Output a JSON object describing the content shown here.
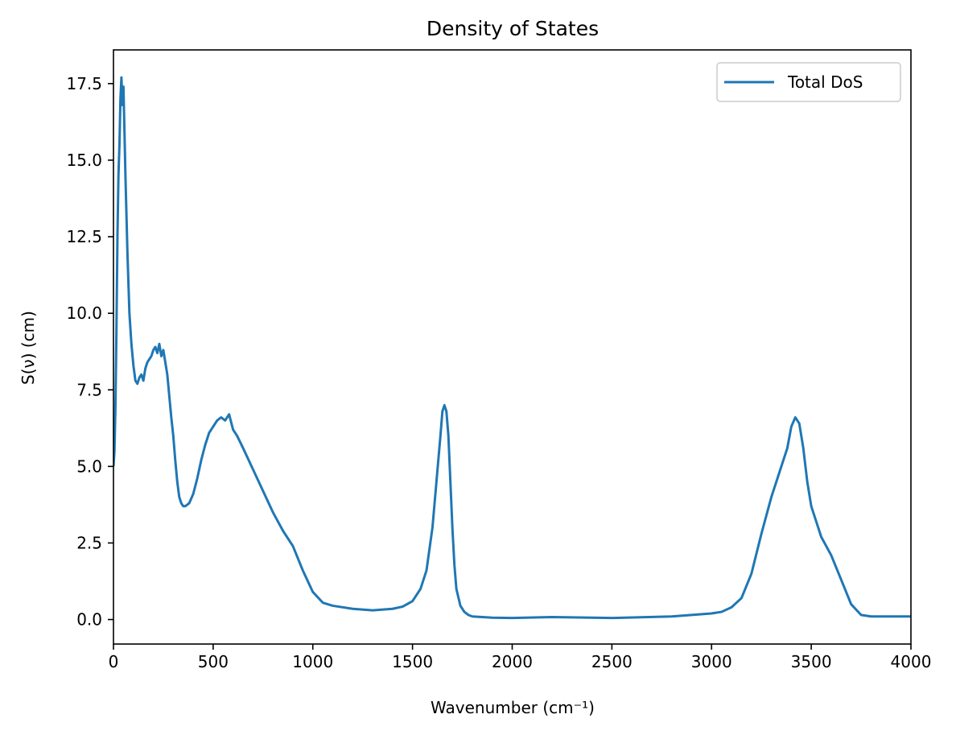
{
  "chart_data": {
    "type": "line",
    "title": "Density of States",
    "xlabel": "Wavenumber (cm⁻¹)",
    "ylabel": "S(ν) (cm)",
    "xlim": [
      0,
      4000
    ],
    "ylim": [
      -0.8,
      18.6
    ],
    "xticks": [
      0,
      500,
      1000,
      1500,
      2000,
      2500,
      3000,
      3500,
      4000
    ],
    "xtick_labels": [
      "0",
      "500",
      "1000",
      "1500",
      "2000",
      "2500",
      "3000",
      "3500",
      "4000"
    ],
    "yticks": [
      0,
      2.5,
      5,
      7.5,
      10,
      12.5,
      15,
      17.5
    ],
    "ytick_labels": [
      "0.0",
      "2.5",
      "5.0",
      "7.5",
      "10.0",
      "12.5",
      "15.0",
      "17.5"
    ],
    "grid": false,
    "legend_position": "top-right",
    "colors": {
      "series": "#1f77b4",
      "axes": "#000000"
    },
    "series": [
      {
        "name": "Total DoS",
        "x": [
          0,
          5,
          10,
          15,
          20,
          25,
          30,
          35,
          40,
          45,
          50,
          55,
          60,
          70,
          80,
          90,
          100,
          110,
          120,
          130,
          140,
          150,
          160,
          170,
          180,
          190,
          200,
          210,
          220,
          230,
          240,
          250,
          260,
          270,
          280,
          290,
          300,
          310,
          320,
          330,
          340,
          350,
          360,
          370,
          380,
          400,
          420,
          440,
          460,
          480,
          500,
          520,
          540,
          560,
          580,
          600,
          620,
          650,
          700,
          750,
          800,
          850,
          900,
          950,
          1000,
          1050,
          1100,
          1200,
          1300,
          1400,
          1450,
          1500,
          1540,
          1570,
          1600,
          1620,
          1640,
          1650,
          1660,
          1670,
          1680,
          1690,
          1700,
          1710,
          1720,
          1740,
          1760,
          1780,
          1800,
          1850,
          1900,
          2000,
          2200,
          2500,
          2800,
          3000,
          3050,
          3100,
          3150,
          3200,
          3250,
          3300,
          3350,
          3380,
          3400,
          3420,
          3440,
          3460,
          3480,
          3500,
          3550,
          3600,
          3650,
          3700,
          3750,
          3800,
          3900,
          4000
        ],
        "y": [
          5.0,
          5.5,
          7.0,
          9.5,
          12.5,
          14.5,
          15.5,
          17.0,
          17.7,
          16.8,
          17.4,
          16.0,
          14.5,
          12.0,
          10.0,
          9.0,
          8.3,
          7.8,
          7.7,
          7.9,
          8.0,
          7.8,
          8.2,
          8.4,
          8.5,
          8.6,
          8.8,
          8.9,
          8.7,
          9.0,
          8.6,
          8.8,
          8.4,
          8.0,
          7.3,
          6.6,
          6.0,
          5.2,
          4.5,
          4.0,
          3.8,
          3.7,
          3.7,
          3.75,
          3.8,
          4.1,
          4.6,
          5.2,
          5.7,
          6.1,
          6.3,
          6.5,
          6.6,
          6.5,
          6.7,
          6.2,
          6.0,
          5.6,
          4.9,
          4.2,
          3.5,
          2.9,
          2.4,
          1.6,
          0.9,
          0.55,
          0.45,
          0.35,
          0.3,
          0.35,
          0.42,
          0.6,
          1.0,
          1.6,
          3.0,
          4.5,
          6.0,
          6.8,
          7.0,
          6.8,
          6.0,
          4.5,
          3.0,
          1.8,
          1.0,
          0.45,
          0.25,
          0.15,
          0.1,
          0.08,
          0.06,
          0.05,
          0.08,
          0.05,
          0.1,
          0.2,
          0.25,
          0.4,
          0.7,
          1.5,
          2.8,
          4.0,
          5.0,
          5.6,
          6.3,
          6.6,
          6.4,
          5.6,
          4.5,
          3.7,
          2.7,
          2.1,
          1.3,
          0.5,
          0.15,
          0.1,
          0.1,
          0.1
        ]
      }
    ]
  }
}
